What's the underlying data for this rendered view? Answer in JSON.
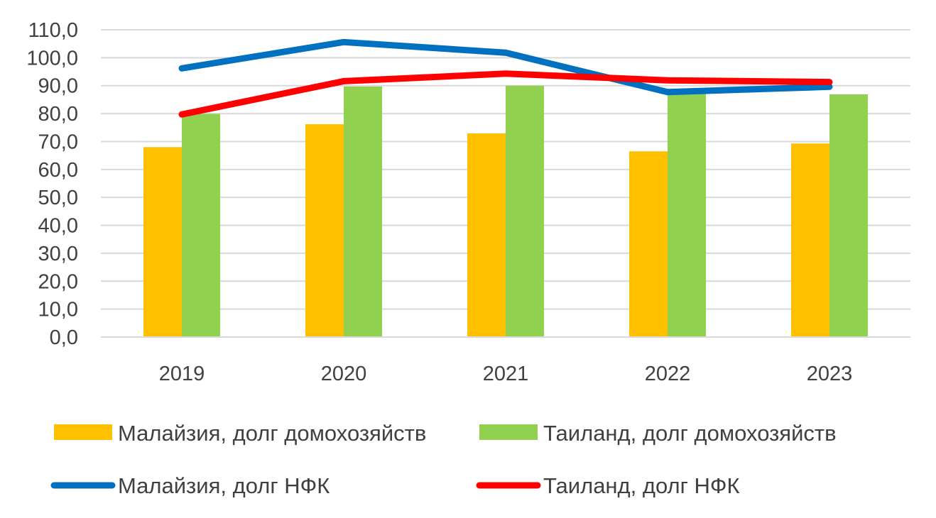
{
  "chart_data": {
    "type": "bar",
    "categories": [
      "2019",
      "2020",
      "2021",
      "2022",
      "2023"
    ],
    "series": [
      {
        "name": "Малайзия, долг домохозяйств",
        "kind": "bar",
        "color": "#FFC000",
        "values": [
          68.0,
          76.2,
          72.9,
          66.5,
          69.3
        ]
      },
      {
        "name": "Таиланд, долг домохозяйств",
        "kind": "bar",
        "color": "#92D050",
        "values": [
          79.9,
          89.7,
          90.0,
          87.5,
          86.9
        ]
      },
      {
        "name": "Малайзия, долг НФК",
        "kind": "line",
        "color": "#0070C0",
        "values": [
          96.2,
          105.6,
          101.8,
          87.7,
          89.6
        ]
      },
      {
        "name": "Таиланд, долг НФК",
        "kind": "line",
        "color": "#FF0000",
        "values": [
          79.7,
          91.6,
          94.3,
          91.9,
          91.3
        ]
      }
    ],
    "y_ticks": [
      "0,0",
      "10,0",
      "20,0",
      "30,0",
      "40,0",
      "50,0",
      "60,0",
      "70,0",
      "80,0",
      "90,0",
      "100,0",
      "110,0"
    ],
    "ylim": [
      0,
      110
    ],
    "grid": true,
    "legend_position": "bottom"
  }
}
